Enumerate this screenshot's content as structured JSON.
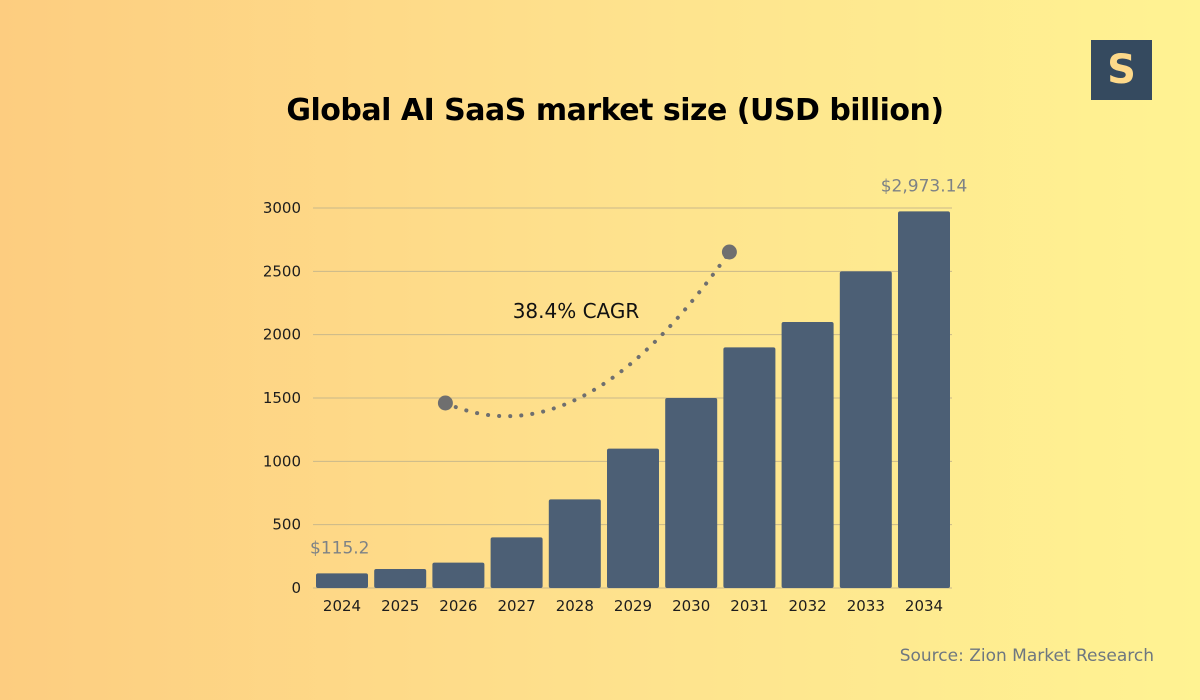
{
  "logo": {
    "letter": "S"
  },
  "title": "Global AI SaaS market size (USD billion)",
  "source": "Source: Zion Market Research",
  "colors": {
    "bar": "#4c5f75",
    "grid": "#c9b98a",
    "curve": "#6f6f6f",
    "logo_bg": "#354a5f",
    "logo_fg": "#fdd98a"
  },
  "chart_data": {
    "type": "bar",
    "title": "Global AI SaaS market size (USD billion)",
    "xlabel": "",
    "ylabel": "",
    "categories": [
      "2024",
      "2025",
      "2026",
      "2027",
      "2028",
      "2029",
      "2030",
      "2031",
      "2032",
      "2033",
      "2034"
    ],
    "values": [
      115.2,
      150,
      200,
      400,
      700,
      1100,
      1500,
      1900,
      2100,
      2500,
      2973.14
    ],
    "ylim": [
      0,
      3000
    ],
    "yticks": [
      0,
      500,
      1000,
      1500,
      2000,
      2500,
      3000
    ],
    "ytick_labels": [
      "0",
      "500",
      "1000",
      "1500",
      "2000",
      "2500",
      "3000"
    ],
    "grid": true,
    "data_labels": [
      {
        "index": 0,
        "text": "$115.2"
      },
      {
        "index": 10,
        "text": "$2,973.14"
      }
    ],
    "annotation": {
      "text": "38.4% CAGR",
      "from_year": "2026",
      "to_year": "2031"
    }
  }
}
